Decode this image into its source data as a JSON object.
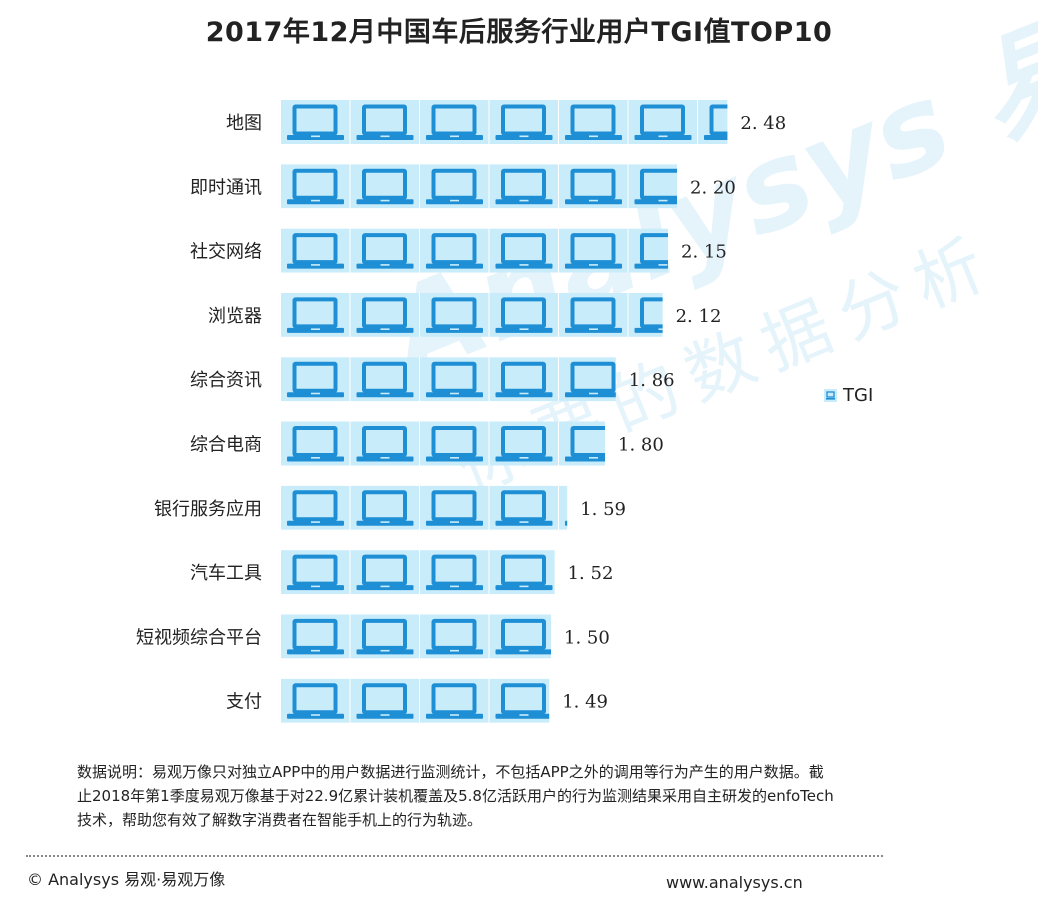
{
  "chart_data": {
    "type": "bar",
    "orientation": "horizontal",
    "title": "2017年12月中国车后服务行业用户TGI值TOP10",
    "categories": [
      "地图",
      "即时通讯",
      "社交网络",
      "浏览器",
      "综合资讯",
      "综合电商",
      "银行服务应用",
      "汽车工具",
      "短视频综合平台",
      "支付"
    ],
    "series": [
      {
        "name": "TGI",
        "values": [
          2.48,
          2.2,
          2.15,
          2.12,
          1.86,
          1.8,
          1.59,
          1.52,
          1.5,
          1.49
        ]
      }
    ],
    "value_labels": [
      "2. 48",
      "2. 20",
      "2. 15",
      "2. 12",
      "1. 86",
      "1. 80",
      "1. 59",
      "1. 52",
      "1. 50",
      "1. 49"
    ],
    "bar_style": "pictograph-laptop",
    "xlim": [
      0,
      2.5
    ],
    "grid": false,
    "legend_position": "right",
    "colors": {
      "icon": "#1e8fd5",
      "icon_bg": "#c9ecfa",
      "cell_divider": "#ffffff"
    }
  },
  "watermark": {
    "brand": "Analysys 易观",
    "slogan": "你要的数据分析"
  },
  "note": "数据说明：易观万像只对独立APP中的用户数据进行监测统计，不包括APP之外的调用等行为产生的用户数据。截止2018年第1季度易观万像基于对22.9亿累计装机覆盖及5.8亿活跃用户的行为监测结果采用自主研发的enfoTech技术，帮助您有效了解数字消费者在智能手机上的行为轨迹。",
  "footer": {
    "copyright": "© Analysys 易观·易观万像",
    "website": "www.analysys.cn"
  }
}
